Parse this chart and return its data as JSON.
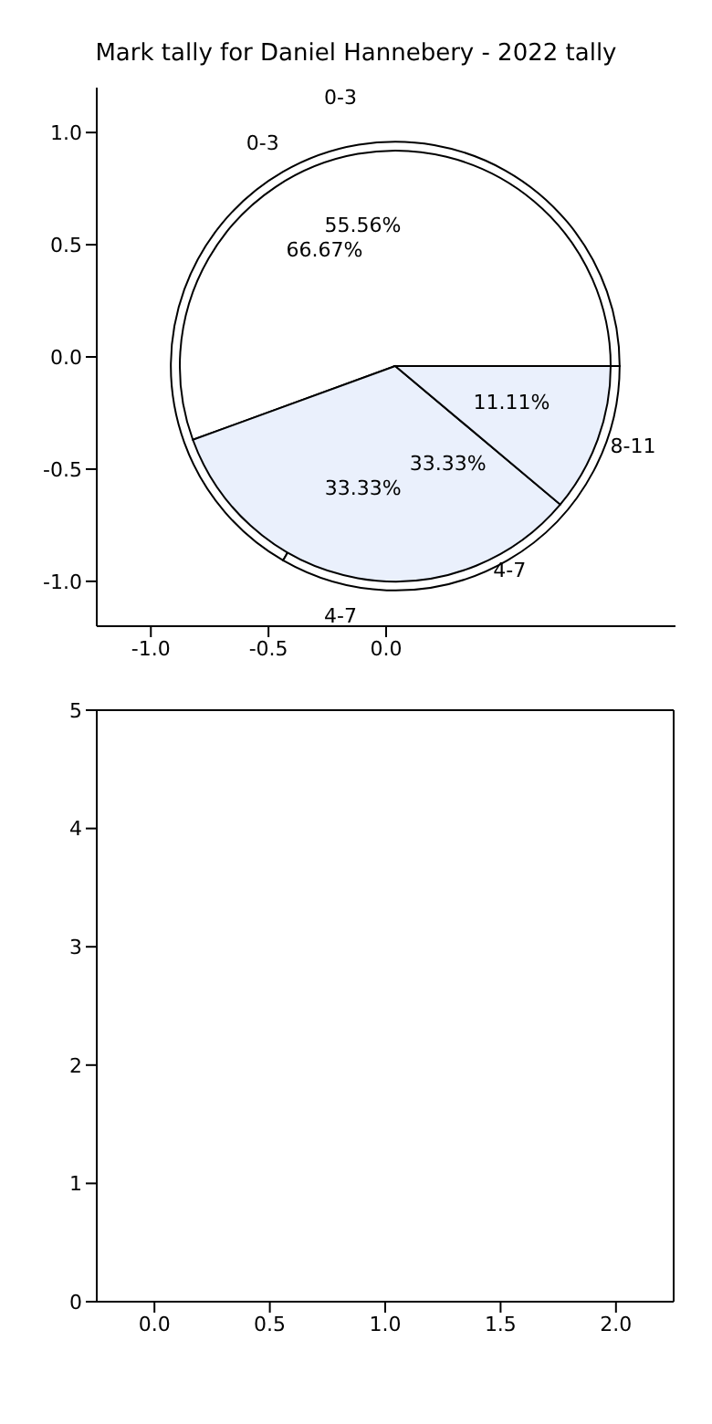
{
  "chart_data": [
    {
      "type": "scatter",
      "title": "Mark tally for Daniel Hannebery - 2022 tally",
      "xlim": [
        -1.23,
        1.23
      ],
      "ylim": [
        -1.2,
        1.2
      ],
      "xticks": [
        {
          "value": -1,
          "label": "-1.0"
        },
        {
          "value": -0.5,
          "label": "-0.5"
        },
        {
          "value": 0,
          "label": "0.0"
        }
      ],
      "yticks": [
        {
          "value": -1,
          "label": "-1.0"
        },
        {
          "value": -0.5,
          "label": "-0.5"
        },
        {
          "value": 0,
          "label": "0.0"
        },
        {
          "value": 0.5,
          "label": "0.5"
        },
        {
          "value": 1,
          "label": "1.0"
        }
      ]
    },
    {
      "type": "pie",
      "categories": [
        "0-3",
        "4-7"
      ],
      "values": [
        66.67,
        33.33
      ],
      "colors": [
        "#ffffff",
        "#ffffff"
      ],
      "value_labels": [
        "66.67%",
        "33.33%"
      ]
    },
    {
      "type": "pie",
      "categories": [
        "0-3",
        "4-7",
        "8-11"
      ],
      "values": [
        55.56,
        33.33,
        11.11
      ],
      "colors": [
        "#ffffff",
        "#eaf0fc",
        "#eaf0fc"
      ],
      "value_labels": [
        "55.56%",
        "33.33%",
        "11.11%"
      ]
    },
    {
      "type": "scatter",
      "xlim": [
        -0.25,
        2.25
      ],
      "ylim": [
        0,
        5
      ],
      "xticks": [
        {
          "value": 0,
          "label": "0.0"
        },
        {
          "value": 0.5,
          "label": "0.5"
        },
        {
          "value": 1,
          "label": "1.0"
        },
        {
          "value": 1.5,
          "label": "1.5"
        },
        {
          "value": 2,
          "label": "2.0"
        }
      ],
      "yticks": [
        0,
        1,
        2,
        3,
        4,
        5
      ]
    }
  ]
}
